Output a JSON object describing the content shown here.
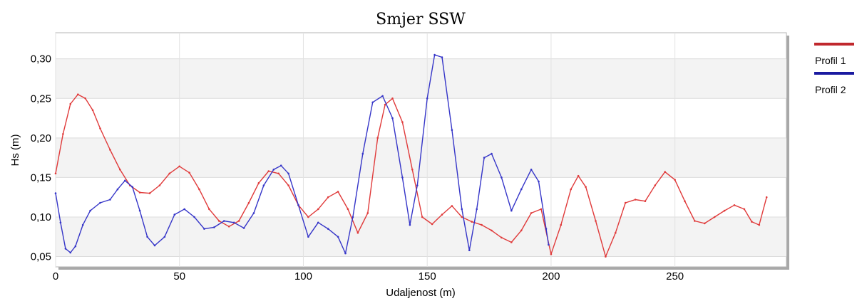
{
  "chart_data": {
    "type": "line",
    "title": "Smjer SSW",
    "xlabel": "Udaljenost (m)",
    "ylabel": "Hs (m)",
    "xlim": [
      0,
      295
    ],
    "ylim": [
      0.037,
      0.333
    ],
    "x_ticks": [
      0,
      50,
      100,
      150,
      200,
      250
    ],
    "x_tick_labels": [
      "0",
      "50",
      "100",
      "150",
      "200",
      "250"
    ],
    "y_ticks": [
      0.05,
      0.1,
      0.15,
      0.2,
      0.25,
      0.3
    ],
    "y_tick_labels": [
      "0,05",
      "0,10",
      "0,15",
      "0,20",
      "0,25",
      "0,30"
    ],
    "grid": true,
    "legend_position": "right",
    "series": [
      {
        "name": "Profil 1",
        "color": "#e03a3a",
        "legend_color": "#c0282d",
        "points": [
          [
            0,
            0.155
          ],
          [
            3,
            0.205
          ],
          [
            6,
            0.243
          ],
          [
            9,
            0.255
          ],
          [
            12,
            0.25
          ],
          [
            15,
            0.235
          ],
          [
            18,
            0.212
          ],
          [
            22,
            0.185
          ],
          [
            26,
            0.16
          ],
          [
            30,
            0.14
          ],
          [
            34,
            0.131
          ],
          [
            38,
            0.13
          ],
          [
            42,
            0.14
          ],
          [
            46,
            0.155
          ],
          [
            50,
            0.164
          ],
          [
            54,
            0.156
          ],
          [
            58,
            0.135
          ],
          [
            62,
            0.11
          ],
          [
            66,
            0.095
          ],
          [
            70,
            0.088
          ],
          [
            74,
            0.095
          ],
          [
            78,
            0.118
          ],
          [
            82,
            0.143
          ],
          [
            86,
            0.158
          ],
          [
            90,
            0.155
          ],
          [
            94,
            0.14
          ],
          [
            98,
            0.115
          ],
          [
            102,
            0.1
          ],
          [
            106,
            0.11
          ],
          [
            110,
            0.125
          ],
          [
            114,
            0.132
          ],
          [
            118,
            0.11
          ],
          [
            122,
            0.08
          ],
          [
            126,
            0.105
          ],
          [
            130,
            0.2
          ],
          [
            133,
            0.242
          ],
          [
            136,
            0.25
          ],
          [
            140,
            0.22
          ],
          [
            144,
            0.16
          ],
          [
            148,
            0.1
          ],
          [
            152,
            0.091
          ],
          [
            156,
            0.103
          ],
          [
            160,
            0.114
          ],
          [
            164,
            0.1
          ],
          [
            168,
            0.094
          ],
          [
            172,
            0.09
          ],
          [
            176,
            0.083
          ],
          [
            180,
            0.074
          ],
          [
            184,
            0.068
          ],
          [
            188,
            0.083
          ],
          [
            192,
            0.105
          ],
          [
            196,
            0.11
          ],
          [
            200,
            0.053
          ],
          [
            204,
            0.09
          ],
          [
            208,
            0.135
          ],
          [
            211,
            0.152
          ],
          [
            214,
            0.138
          ],
          [
            218,
            0.095
          ],
          [
            222,
            0.05
          ],
          [
            226,
            0.08
          ],
          [
            230,
            0.118
          ],
          [
            234,
            0.122
          ],
          [
            238,
            0.12
          ],
          [
            242,
            0.14
          ],
          [
            246,
            0.157
          ],
          [
            250,
            0.147
          ],
          [
            254,
            0.12
          ],
          [
            258,
            0.095
          ],
          [
            262,
            0.092
          ],
          [
            266,
            0.1
          ],
          [
            270,
            0.108
          ],
          [
            274,
            0.115
          ],
          [
            278,
            0.11
          ],
          [
            281,
            0.094
          ],
          [
            284,
            0.09
          ],
          [
            287,
            0.125
          ]
        ]
      },
      {
        "name": "Profil 2",
        "color": "#3535c8",
        "legend_color": "#1a1aa0",
        "points": [
          [
            0,
            0.13
          ],
          [
            2,
            0.093
          ],
          [
            4,
            0.06
          ],
          [
            6,
            0.055
          ],
          [
            8,
            0.063
          ],
          [
            11,
            0.09
          ],
          [
            14,
            0.108
          ],
          [
            18,
            0.118
          ],
          [
            22,
            0.122
          ],
          [
            25,
            0.135
          ],
          [
            28,
            0.146
          ],
          [
            31,
            0.138
          ],
          [
            34,
            0.108
          ],
          [
            37,
            0.075
          ],
          [
            40,
            0.064
          ],
          [
            44,
            0.075
          ],
          [
            48,
            0.103
          ],
          [
            52,
            0.11
          ],
          [
            56,
            0.1
          ],
          [
            60,
            0.085
          ],
          [
            64,
            0.087
          ],
          [
            68,
            0.095
          ],
          [
            72,
            0.093
          ],
          [
            76,
            0.086
          ],
          [
            80,
            0.105
          ],
          [
            84,
            0.14
          ],
          [
            88,
            0.16
          ],
          [
            91,
            0.165
          ],
          [
            94,
            0.155
          ],
          [
            98,
            0.115
          ],
          [
            102,
            0.075
          ],
          [
            106,
            0.093
          ],
          [
            110,
            0.085
          ],
          [
            114,
            0.075
          ],
          [
            117,
            0.054
          ],
          [
            120,
            0.1
          ],
          [
            124,
            0.18
          ],
          [
            128,
            0.245
          ],
          [
            132,
            0.253
          ],
          [
            136,
            0.225
          ],
          [
            140,
            0.15
          ],
          [
            143,
            0.09
          ],
          [
            146,
            0.14
          ],
          [
            150,
            0.25
          ],
          [
            153,
            0.305
          ],
          [
            156,
            0.302
          ],
          [
            160,
            0.21
          ],
          [
            164,
            0.11
          ],
          [
            167,
            0.058
          ],
          [
            170,
            0.11
          ],
          [
            173,
            0.175
          ],
          [
            176,
            0.18
          ],
          [
            180,
            0.15
          ],
          [
            184,
            0.108
          ],
          [
            188,
            0.135
          ],
          [
            192,
            0.16
          ],
          [
            195,
            0.145
          ],
          [
            198,
            0.085
          ],
          [
            199,
            0.065
          ]
        ]
      }
    ]
  }
}
